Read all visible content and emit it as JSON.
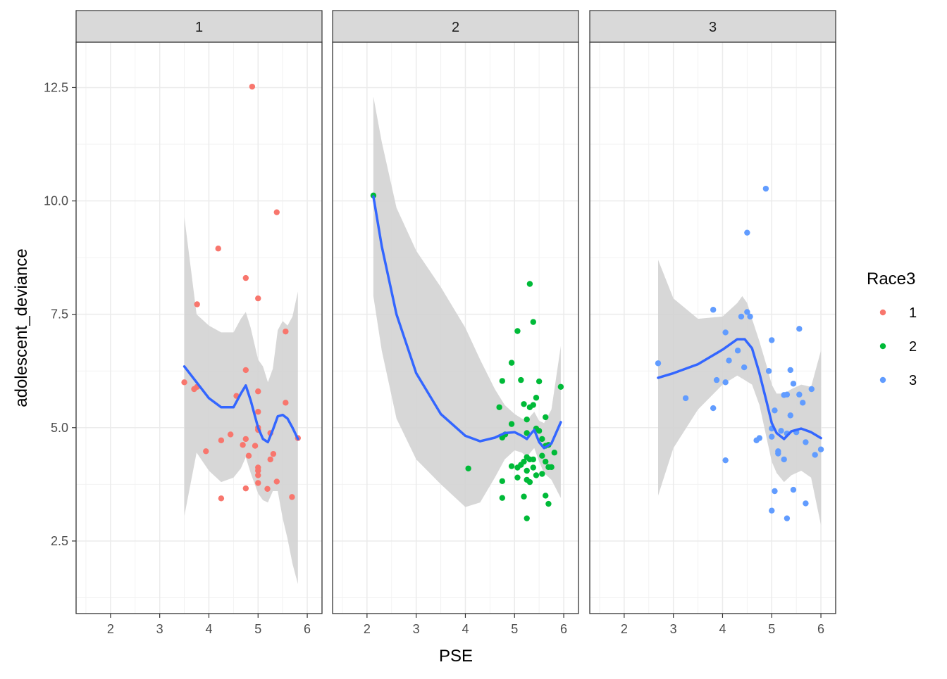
{
  "chart_data": {
    "type": "scatter",
    "xlabel": "PSE",
    "ylabel": "adolescent_deviance",
    "xlim": [
      1.3,
      6.3
    ],
    "ylim": [
      0.9,
      13.5
    ],
    "x_ticks": [
      "2",
      "3",
      "4",
      "5",
      "6"
    ],
    "y_ticks": [
      "2.5",
      "5.0",
      "7.5",
      "10.0",
      "12.5"
    ],
    "grid": true,
    "smooth": "loess with grey confidence band",
    "legend": {
      "title": "Race3",
      "placement": "right",
      "entries": [
        {
          "label": "1",
          "color": "#F8766D"
        },
        {
          "label": "2",
          "color": "#00BA38"
        },
        {
          "label": "3",
          "color": "#619CFF"
        }
      ]
    },
    "smooth_color": "#3366FF",
    "band_color": "#d3d3d3",
    "facets": [
      {
        "label": "1",
        "color": "#F8766D",
        "points": [
          [
            4.88,
            12.52
          ],
          [
            5.38,
            9.75
          ],
          [
            4.19,
            8.95
          ],
          [
            4.75,
            8.3
          ],
          [
            5.0,
            7.85
          ],
          [
            3.76,
            7.72
          ],
          [
            5.56,
            7.12
          ],
          [
            4.75,
            6.27
          ],
          [
            3.5,
            6.0
          ],
          [
            3.7,
            5.85
          ],
          [
            3.76,
            5.9
          ],
          [
            4.56,
            5.7
          ],
          [
            5.0,
            5.8
          ],
          [
            5.56,
            5.55
          ],
          [
            5.0,
            5.35
          ],
          [
            4.44,
            4.85
          ],
          [
            5.0,
            5.0
          ],
          [
            4.25,
            4.72
          ],
          [
            4.69,
            4.62
          ],
          [
            4.75,
            4.75
          ],
          [
            4.94,
            4.6
          ],
          [
            5.0,
            4.95
          ],
          [
            5.25,
            4.88
          ],
          [
            5.81,
            4.77
          ],
          [
            3.94,
            4.48
          ],
          [
            4.81,
            4.38
          ],
          [
            5.31,
            4.42
          ],
          [
            5.25,
            4.3
          ],
          [
            5.0,
            4.12
          ],
          [
            5.0,
            4.05
          ],
          [
            5.0,
            3.95
          ],
          [
            5.38,
            3.81
          ],
          [
            5.0,
            3.78
          ],
          [
            4.75,
            3.66
          ],
          [
            5.19,
            3.65
          ],
          [
            5.69,
            3.47
          ],
          [
            4.25,
            3.44
          ]
        ],
        "smooth": [
          [
            3.5,
            6.35
          ],
          [
            3.75,
            6.0
          ],
          [
            4.0,
            5.65
          ],
          [
            4.25,
            5.45
          ],
          [
            4.5,
            5.45
          ],
          [
            4.65,
            5.75
          ],
          [
            4.75,
            5.93
          ],
          [
            4.85,
            5.6
          ],
          [
            5.0,
            5.0
          ],
          [
            5.1,
            4.75
          ],
          [
            5.2,
            4.68
          ],
          [
            5.3,
            4.95
          ],
          [
            5.4,
            5.25
          ],
          [
            5.5,
            5.28
          ],
          [
            5.6,
            5.2
          ],
          [
            5.7,
            5.0
          ],
          [
            5.81,
            4.75
          ]
        ],
        "band_upper": [
          [
            3.5,
            9.65
          ],
          [
            3.75,
            7.5
          ],
          [
            4.0,
            7.25
          ],
          [
            4.25,
            7.1
          ],
          [
            4.5,
            7.1
          ],
          [
            4.65,
            7.4
          ],
          [
            4.75,
            7.55
          ],
          [
            4.85,
            7.2
          ],
          [
            5.0,
            6.5
          ],
          [
            5.1,
            6.35
          ],
          [
            5.2,
            6.0
          ],
          [
            5.3,
            6.3
          ],
          [
            5.4,
            7.15
          ],
          [
            5.5,
            7.35
          ],
          [
            5.6,
            7.25
          ],
          [
            5.7,
            7.45
          ],
          [
            5.81,
            8.0
          ]
        ],
        "band_lower": [
          [
            3.5,
            3.05
          ],
          [
            3.75,
            4.45
          ],
          [
            4.0,
            4.05
          ],
          [
            4.25,
            3.8
          ],
          [
            4.5,
            3.9
          ],
          [
            4.65,
            4.1
          ],
          [
            4.75,
            4.35
          ],
          [
            4.85,
            4.0
          ],
          [
            5.0,
            3.55
          ],
          [
            5.1,
            3.4
          ],
          [
            5.2,
            3.35
          ],
          [
            5.3,
            3.6
          ],
          [
            5.4,
            3.6
          ],
          [
            5.5,
            3.0
          ],
          [
            5.6,
            2.55
          ],
          [
            5.7,
            2.0
          ],
          [
            5.81,
            1.55
          ]
        ]
      },
      {
        "label": "2",
        "color": "#00BA38",
        "points": [
          [
            2.13,
            10.12
          ],
          [
            5.31,
            8.17
          ],
          [
            5.38,
            7.33
          ],
          [
            5.06,
            7.13
          ],
          [
            4.94,
            6.43
          ],
          [
            4.75,
            6.03
          ],
          [
            5.13,
            6.05
          ],
          [
            5.5,
            6.02
          ],
          [
            5.94,
            5.9
          ],
          [
            5.44,
            5.66
          ],
          [
            5.19,
            5.52
          ],
          [
            5.38,
            5.5
          ],
          [
            5.31,
            5.45
          ],
          [
            5.63,
            5.23
          ],
          [
            4.69,
            5.45
          ],
          [
            5.25,
            5.18
          ],
          [
            4.94,
            5.08
          ],
          [
            5.44,
            4.98
          ],
          [
            5.5,
            4.93
          ],
          [
            5.25,
            4.88
          ],
          [
            4.81,
            4.85
          ],
          [
            4.75,
            4.78
          ],
          [
            5.56,
            4.75
          ],
          [
            5.63,
            4.6
          ],
          [
            5.69,
            4.62
          ],
          [
            5.81,
            4.45
          ],
          [
            5.56,
            4.38
          ],
          [
            5.25,
            4.35
          ],
          [
            5.31,
            4.3
          ],
          [
            5.38,
            4.3
          ],
          [
            5.19,
            4.25
          ],
          [
            5.63,
            4.25
          ],
          [
            5.13,
            4.18
          ],
          [
            4.94,
            4.15
          ],
          [
            5.06,
            4.12
          ],
          [
            5.38,
            4.12
          ],
          [
            5.69,
            4.13
          ],
          [
            5.75,
            4.13
          ],
          [
            4.06,
            4.1
          ],
          [
            5.25,
            4.05
          ],
          [
            5.56,
            3.98
          ],
          [
            5.44,
            3.95
          ],
          [
            5.06,
            3.9
          ],
          [
            5.25,
            3.85
          ],
          [
            4.75,
            3.82
          ],
          [
            5.31,
            3.8
          ],
          [
            4.75,
            3.45
          ],
          [
            5.19,
            3.48
          ],
          [
            5.63,
            3.5
          ],
          [
            5.69,
            3.32
          ],
          [
            5.25,
            3.0
          ]
        ],
        "smooth": [
          [
            2.13,
            10.1
          ],
          [
            2.3,
            9.0
          ],
          [
            2.6,
            7.5
          ],
          [
            3.0,
            6.2
          ],
          [
            3.5,
            5.3
          ],
          [
            4.0,
            4.82
          ],
          [
            4.3,
            4.7
          ],
          [
            4.6,
            4.78
          ],
          [
            4.8,
            4.88
          ],
          [
            5.0,
            4.9
          ],
          [
            5.15,
            4.82
          ],
          [
            5.25,
            4.75
          ],
          [
            5.32,
            4.85
          ],
          [
            5.4,
            4.95
          ],
          [
            5.5,
            4.68
          ],
          [
            5.6,
            4.55
          ],
          [
            5.75,
            4.65
          ],
          [
            5.94,
            5.12
          ]
        ],
        "band_upper": [
          [
            2.13,
            12.3
          ],
          [
            2.3,
            11.3
          ],
          [
            2.6,
            9.85
          ],
          [
            3.0,
            8.9
          ],
          [
            3.5,
            8.1
          ],
          [
            4.0,
            7.2
          ],
          [
            4.3,
            6.5
          ],
          [
            4.6,
            5.85
          ],
          [
            4.8,
            5.5
          ],
          [
            5.0,
            5.3
          ],
          [
            5.15,
            5.2
          ],
          [
            5.25,
            5.15
          ],
          [
            5.32,
            5.25
          ],
          [
            5.4,
            5.35
          ],
          [
            5.5,
            5.15
          ],
          [
            5.6,
            5.1
          ],
          [
            5.75,
            5.4
          ],
          [
            5.94,
            6.8
          ]
        ],
        "band_lower": [
          [
            2.13,
            7.9
          ],
          [
            2.3,
            6.7
          ],
          [
            2.6,
            5.2
          ],
          [
            3.0,
            4.3
          ],
          [
            3.5,
            3.75
          ],
          [
            4.0,
            3.25
          ],
          [
            4.3,
            3.35
          ],
          [
            4.6,
            3.9
          ],
          [
            4.8,
            4.3
          ],
          [
            5.0,
            4.5
          ],
          [
            5.15,
            4.45
          ],
          [
            5.25,
            4.35
          ],
          [
            5.32,
            4.45
          ],
          [
            5.4,
            4.55
          ],
          [
            5.5,
            4.25
          ],
          [
            5.6,
            4.0
          ],
          [
            5.75,
            3.85
          ],
          [
            5.94,
            3.45
          ]
        ]
      },
      {
        "label": "3",
        "color": "#619CFF",
        "points": [
          [
            4.88,
            10.27
          ],
          [
            4.5,
            9.3
          ],
          [
            3.81,
            7.6
          ],
          [
            4.5,
            7.55
          ],
          [
            4.38,
            7.45
          ],
          [
            4.56,
            7.45
          ],
          [
            5.56,
            7.18
          ],
          [
            4.06,
            7.1
          ],
          [
            5.0,
            6.93
          ],
          [
            4.31,
            6.7
          ],
          [
            4.13,
            6.48
          ],
          [
            2.69,
            6.42
          ],
          [
            4.44,
            6.33
          ],
          [
            4.94,
            6.25
          ],
          [
            5.38,
            6.27
          ],
          [
            3.88,
            6.05
          ],
          [
            4.06,
            6.0
          ],
          [
            5.44,
            5.97
          ],
          [
            5.81,
            5.85
          ],
          [
            5.25,
            5.72
          ],
          [
            5.31,
            5.73
          ],
          [
            5.56,
            5.73
          ],
          [
            3.25,
            5.65
          ],
          [
            5.63,
            5.55
          ],
          [
            3.81,
            5.43
          ],
          [
            5.06,
            5.38
          ],
          [
            5.38,
            5.27
          ],
          [
            5.0,
            4.98
          ],
          [
            5.19,
            4.93
          ],
          [
            5.5,
            4.9
          ],
          [
            5.31,
            4.87
          ],
          [
            5.0,
            4.8
          ],
          [
            4.75,
            4.77
          ],
          [
            4.69,
            4.72
          ],
          [
            5.69,
            4.68
          ],
          [
            6.0,
            4.52
          ],
          [
            5.13,
            4.48
          ],
          [
            5.13,
            4.43
          ],
          [
            5.88,
            4.4
          ],
          [
            5.25,
            4.3
          ],
          [
            4.06,
            4.28
          ],
          [
            5.06,
            3.6
          ],
          [
            5.44,
            3.63
          ],
          [
            5.69,
            3.33
          ],
          [
            5.0,
            3.17
          ],
          [
            5.31,
            3.0
          ]
        ],
        "smooth": [
          [
            2.69,
            6.1
          ],
          [
            3.0,
            6.2
          ],
          [
            3.5,
            6.4
          ],
          [
            4.0,
            6.72
          ],
          [
            4.3,
            6.95
          ],
          [
            4.45,
            6.95
          ],
          [
            4.6,
            6.75
          ],
          [
            4.75,
            6.2
          ],
          [
            4.9,
            5.55
          ],
          [
            5.0,
            5.1
          ],
          [
            5.1,
            4.88
          ],
          [
            5.25,
            4.75
          ],
          [
            5.4,
            4.92
          ],
          [
            5.6,
            4.98
          ],
          [
            5.8,
            4.9
          ],
          [
            6.0,
            4.77
          ]
        ],
        "band_upper": [
          [
            2.69,
            8.7
          ],
          [
            3.0,
            7.85
          ],
          [
            3.5,
            7.4
          ],
          [
            4.0,
            7.45
          ],
          [
            4.3,
            7.75
          ],
          [
            4.4,
            7.9
          ],
          [
            4.5,
            7.75
          ],
          [
            4.6,
            7.4
          ],
          [
            4.75,
            6.9
          ],
          [
            4.9,
            6.35
          ],
          [
            5.0,
            5.95
          ],
          [
            5.1,
            5.75
          ],
          [
            5.25,
            5.75
          ],
          [
            5.4,
            5.85
          ],
          [
            5.6,
            5.95
          ],
          [
            5.8,
            5.9
          ],
          [
            6.0,
            6.7
          ]
        ],
        "band_lower": [
          [
            2.69,
            3.5
          ],
          [
            3.0,
            4.55
          ],
          [
            3.5,
            5.4
          ],
          [
            4.0,
            5.95
          ],
          [
            4.3,
            6.15
          ],
          [
            4.45,
            6.05
          ],
          [
            4.6,
            5.95
          ],
          [
            4.75,
            5.5
          ],
          [
            4.9,
            4.75
          ],
          [
            5.0,
            4.25
          ],
          [
            5.1,
            4.0
          ],
          [
            5.25,
            3.8
          ],
          [
            5.4,
            3.95
          ],
          [
            5.6,
            4.05
          ],
          [
            5.8,
            3.9
          ],
          [
            6.0,
            2.85
          ]
        ]
      }
    ]
  }
}
